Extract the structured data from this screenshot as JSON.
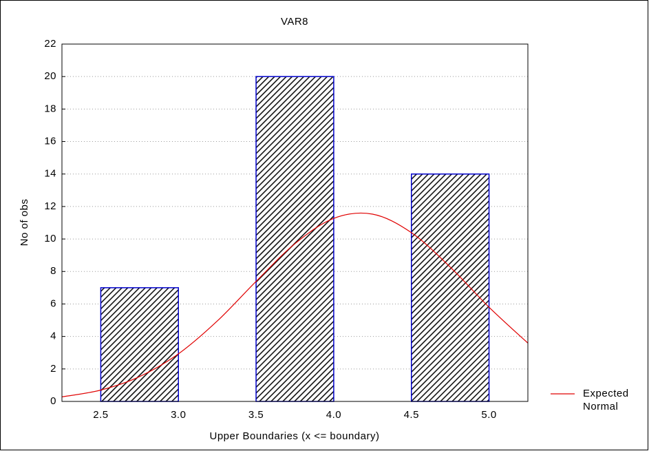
{
  "chart_data": {
    "type": "histogram",
    "title": "VAR8",
    "x_label": "Upper Boundaries (x <= boundary)",
    "y_label": "No of obs",
    "bins": [
      2.5,
      3.0,
      3.5,
      4.0,
      4.5,
      5.0
    ],
    "values": [
      7,
      0,
      20,
      0,
      14
    ],
    "color": "#0000cc",
    "xlim": [
      2.25,
      5.25
    ],
    "xticks": [
      2.5,
      {
        "value": 3,
        "label": "3.0"
      },
      3.5,
      {
        "value": 4,
        "label": "4.0"
      },
      4.5,
      {
        "value": 5,
        "label": "5.0"
      }
    ],
    "ylim": [
      0,
      22
    ],
    "yticks": [
      0,
      2,
      4,
      6,
      8,
      10,
      12,
      14,
      16,
      18,
      20,
      22
    ],
    "grid": true,
    "series": [
      {
        "name": "Expected Normal",
        "color": "#e00000",
        "x": [
          2.25,
          2.5,
          2.75,
          3.0,
          3.25,
          3.5,
          3.75,
          4.0,
          4.25,
          4.5,
          4.75,
          5.0,
          5.25
        ],
        "values": [
          0.28,
          0.7,
          1.53,
          2.93,
          4.95,
          7.39,
          9.71,
          11.27,
          11.53,
          10.39,
          8.27,
          5.8,
          3.59
        ]
      }
    ],
    "legend": "bottom-right"
  }
}
